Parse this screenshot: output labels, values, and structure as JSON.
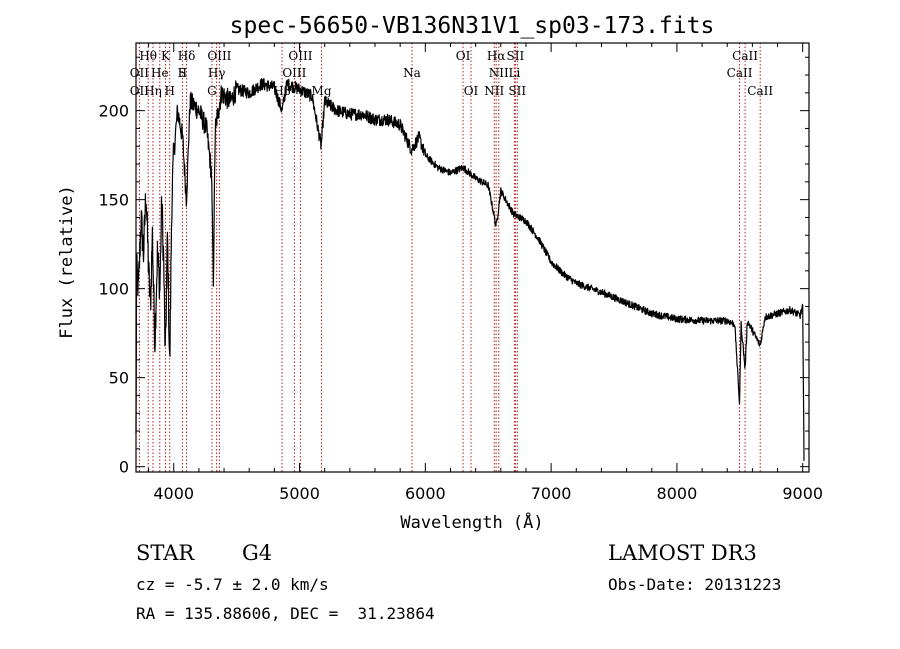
{
  "chart_data": {
    "type": "line",
    "title": "spec-56650-VB136N31V1_sp03-173.fits",
    "xlabel": "Wavelength (Å)",
    "ylabel": "Flux (relative)",
    "xlim": [
      3700,
      9050
    ],
    "ylim": [
      -3,
      238
    ],
    "xticks": [
      4000,
      5000,
      6000,
      7000,
      8000,
      9000
    ],
    "xtick_labels": [
      "4000",
      "5000",
      "6000",
      "7000",
      "8000",
      "9000"
    ],
    "yticks": [
      0,
      50,
      100,
      150,
      200
    ],
    "ytick_labels": [
      "0",
      "50",
      "100",
      "150",
      "200"
    ],
    "series_name": "flux",
    "spectrum_anchors": [
      [
        3700,
        15
      ],
      [
        3705,
        110
      ],
      [
        3720,
        100
      ],
      [
        3740,
        140
      ],
      [
        3760,
        120
      ],
      [
        3780,
        155
      ],
      [
        3800,
        110
      ],
      [
        3815,
        90
      ],
      [
        3830,
        130
      ],
      [
        3850,
        70
      ],
      [
        3870,
        120
      ],
      [
        3890,
        100
      ],
      [
        3905,
        150
      ],
      [
        3920,
        115
      ],
      [
        3933,
        60
      ],
      [
        3950,
        130
      ],
      [
        3968,
        55
      ],
      [
        3985,
        150
      ],
      [
        4000,
        175
      ],
      [
        4030,
        200
      ],
      [
        4070,
        185
      ],
      [
        4101,
        150
      ],
      [
        4130,
        205
      ],
      [
        4200,
        200
      ],
      [
        4260,
        190
      ],
      [
        4300,
        165
      ],
      [
        4315,
        105
      ],
      [
        4330,
        190
      ],
      [
        4380,
        210
      ],
      [
        4450,
        205
      ],
      [
        4500,
        212
      ],
      [
        4600,
        210
      ],
      [
        4700,
        215
      ],
      [
        4800,
        213
      ],
      [
        4861,
        200
      ],
      [
        4900,
        215
      ],
      [
        5000,
        212
      ],
      [
        5100,
        208
      ],
      [
        5172,
        180
      ],
      [
        5200,
        205
      ],
      [
        5300,
        200
      ],
      [
        5400,
        198
      ],
      [
        5500,
        198
      ],
      [
        5600,
        195
      ],
      [
        5700,
        195
      ],
      [
        5800,
        192
      ],
      [
        5890,
        178
      ],
      [
        5950,
        185
      ],
      [
        6000,
        175
      ],
      [
        6100,
        168
      ],
      [
        6200,
        165
      ],
      [
        6300,
        168
      ],
      [
        6400,
        162
      ],
      [
        6500,
        158
      ],
      [
        6563,
        135
      ],
      [
        6600,
        155
      ],
      [
        6700,
        142
      ],
      [
        6800,
        138
      ],
      [
        6900,
        128
      ],
      [
        7000,
        115
      ],
      [
        7100,
        108
      ],
      [
        7200,
        103
      ],
      [
        7400,
        98
      ],
      [
        7600,
        92
      ],
      [
        7800,
        86
      ],
      [
        8000,
        83
      ],
      [
        8200,
        82
      ],
      [
        8400,
        82
      ],
      [
        8460,
        80
      ],
      [
        8498,
        35
      ],
      [
        8510,
        80
      ],
      [
        8542,
        55
      ],
      [
        8560,
        82
      ],
      [
        8662,
        68
      ],
      [
        8700,
        84
      ],
      [
        8800,
        86
      ],
      [
        8900,
        88
      ],
      [
        8980,
        85
      ],
      [
        9000,
        90
      ],
      [
        9010,
        5
      ]
    ],
    "spectral_lines": [
      {
        "label": "Hθ",
        "wavelength": 3797,
        "row": 1
      },
      {
        "label": "OII",
        "wavelength": 3727,
        "row": 2
      },
      {
        "label": "OII",
        "wavelength": 3727,
        "row": 3
      },
      {
        "label": "He",
        "wavelength": 3889,
        "row": 2
      },
      {
        "label": "Hη",
        "wavelength": 3835,
        "row": 3
      },
      {
        "label": "K",
        "wavelength": 3934,
        "row": 1
      },
      {
        "label": "S",
        "wavelength": 4069,
        "row": 2
      },
      {
        "label": "H",
        "wavelength": 3968,
        "row": 3
      },
      {
        "label": "Hδ",
        "wavelength": 4102,
        "row": 1
      },
      {
        "label": "II",
        "wavelength": 4069,
        "row": 2
      },
      {
        "label": "OIII",
        "wavelength": 4363,
        "row": 1
      },
      {
        "label": "Hγ",
        "wavelength": 4341,
        "row": 2
      },
      {
        "label": "G",
        "wavelength": 4304,
        "row": 3
      },
      {
        "label": "OIII",
        "wavelength": 5007,
        "row": 1
      },
      {
        "label": "OIII",
        "wavelength": 4959,
        "row": 2
      },
      {
        "label": "Hβ",
        "wavelength": 4861,
        "row": 3
      },
      {
        "label": "Mg",
        "wavelength": 5175,
        "row": 3
      },
      {
        "label": "Na",
        "wavelength": 5894,
        "row": 2
      },
      {
        "label": "OI",
        "wavelength": 6300,
        "row": 1
      },
      {
        "label": "OI",
        "wavelength": 6363,
        "row": 3
      },
      {
        "label": "Hα",
        "wavelength": 6563,
        "row": 1
      },
      {
        "label": "SII",
        "wavelength": 6716,
        "row": 1
      },
      {
        "label": "NII",
        "wavelength": 6584,
        "row": 2
      },
      {
        "label": "Li",
        "wavelength": 6708,
        "row": 2
      },
      {
        "label": "NII",
        "wavelength": 6548,
        "row": 3
      },
      {
        "label": "SII",
        "wavelength": 6731,
        "row": 3
      },
      {
        "label": "CaII",
        "wavelength": 8542,
        "row": 1
      },
      {
        "label": "CaII",
        "wavelength": 8498,
        "row": 2
      },
      {
        "label": "CaII",
        "wavelength": 8662,
        "row": 3
      }
    ],
    "line_color": "#000000",
    "marker_color": "#b22222",
    "grid": false,
    "legend": "none"
  },
  "info": {
    "object_class": "STAR",
    "subclass": "G4",
    "survey": "LAMOST DR3",
    "redshift": "cz = -5.7 ± 2.0 km/s",
    "obs_date": "Obs-Date: 20131223",
    "coordinates": "RA = 135.88606, DEC =  31.23864"
  }
}
